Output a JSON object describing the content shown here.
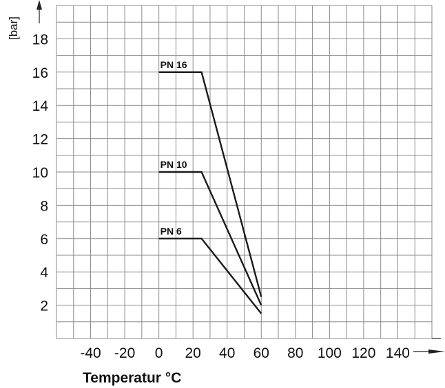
{
  "chart_data": {
    "type": "line",
    "xlabel": "Temperatur °C",
    "ylabel": "[bar]",
    "x_ticks": [
      -40,
      -20,
      0,
      20,
      40,
      60,
      80,
      100,
      120,
      140
    ],
    "y_ticks": [
      2,
      4,
      6,
      8,
      10,
      12,
      14,
      16,
      18
    ],
    "xlim": [
      -60,
      160
    ],
    "ylim": [
      0,
      20
    ],
    "grid": true,
    "series": [
      {
        "name": "PN 16",
        "x": [
          0,
          25,
          60
        ],
        "y": [
          16,
          16,
          2.5
        ]
      },
      {
        "name": "PN 10",
        "x": [
          0,
          25,
          60
        ],
        "y": [
          10,
          10,
          2
        ]
      },
      {
        "name": "PN 6",
        "x": [
          0,
          25,
          60
        ],
        "y": [
          6,
          6,
          1.5
        ]
      }
    ],
    "colors": {
      "line": "#1a1a1a",
      "grid": "#8a8a8a",
      "axis": "#222222"
    }
  }
}
